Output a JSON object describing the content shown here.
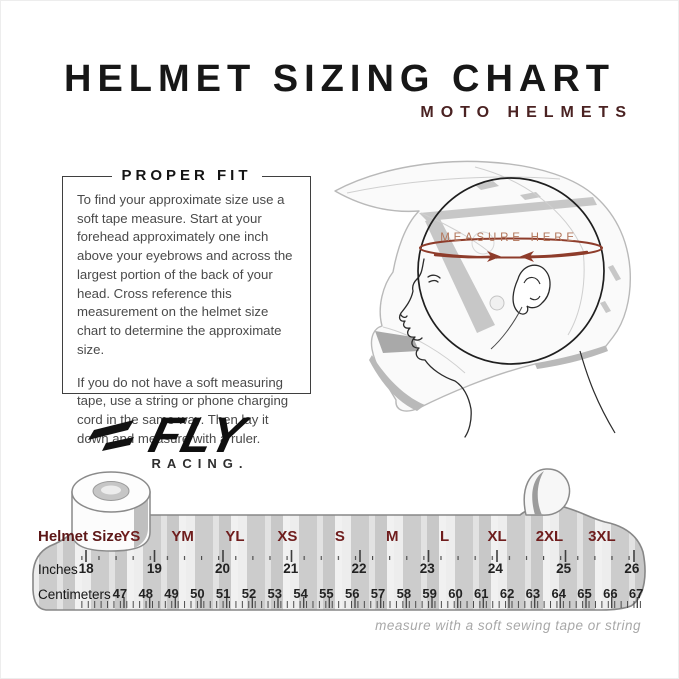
{
  "header": {
    "title": "HELMET SIZING CHART",
    "subtitle": "MOTO HELMETS"
  },
  "proper_fit": {
    "heading": "PROPER FIT",
    "paragraph1": "To find your approximate size use a soft tape measure. Start at your forehead approximately one inch above your eyebrows and across the largest portion of the back of your head. Cross reference this measurement on the helmet size chart to determine the approximate size.",
    "paragraph2": "If you do not have a soft measuring tape, use a string or phone charging cord in the same way. Then lay it down and measure with a ruler."
  },
  "diagram": {
    "measure_label": "MEASURE HERE"
  },
  "brand": {
    "name": "FLY",
    "sub": "RACING."
  },
  "chart_data": {
    "type": "table",
    "title": "HELMET SIZING CHART",
    "row_headers": [
      "Helmet Size",
      "Inches",
      "Centimeters"
    ],
    "sizes": [
      "YS",
      "YM",
      "YL",
      "XS",
      "S",
      "M",
      "L",
      "XL",
      "2XL",
      "3XL"
    ],
    "inches": [
      "18",
      "19",
      "20",
      "21",
      "22",
      "23",
      "24",
      "25",
      "26"
    ],
    "centimeters": [
      "47",
      "48",
      "49",
      "50",
      "51",
      "52",
      "53",
      "54",
      "55",
      "56",
      "57",
      "58",
      "59",
      "60",
      "61",
      "62",
      "63",
      "64",
      "65",
      "66",
      "67"
    ],
    "caption": "measure with a soft sewing tape or string"
  },
  "colors": {
    "title": "#171717",
    "subtitle_maroon": "#4a2222",
    "size_maroon": "#6f1d1d",
    "measure_line": "#8e3c2b",
    "measure_text": "#b2755a"
  }
}
